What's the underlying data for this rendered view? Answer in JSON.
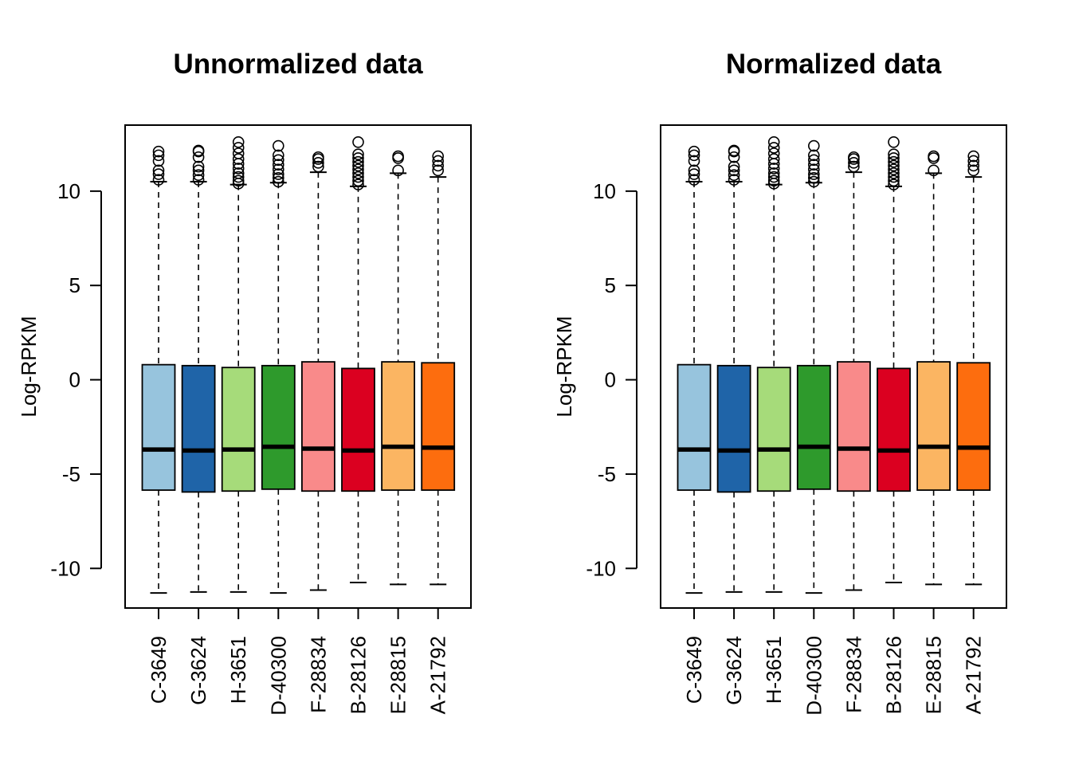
{
  "chart_data": [
    {
      "type": "box",
      "title": "Unnormalized data",
      "xlabel": "",
      "ylabel": "Log-RPKM",
      "ylim": [
        -12.1,
        13.5
      ],
      "yticks": [
        -10,
        -5,
        0,
        5,
        10
      ],
      "ytick_labels": [
        "-10",
        "-5",
        "0",
        "5",
        "10"
      ],
      "categories": [
        "C-3649",
        "G-3624",
        "H-3651",
        "D-40300",
        "F-28834",
        "B-28126",
        "E-28815",
        "A-21792"
      ],
      "colors": [
        "#97C4DD",
        "#1F64A8",
        "#A6DB7A",
        "#2E9A2C",
        "#F98A8A",
        "#DB0020",
        "#FBB562",
        "#FD6D0E"
      ],
      "boxes": [
        {
          "whisker_low": -11.3,
          "q1": -5.85,
          "median": -3.7,
          "q3": 0.8,
          "whisker_high": 10.5,
          "outliers": [
            10.6,
            10.9,
            11.1,
            11.6,
            11.9,
            12.1
          ]
        },
        {
          "whisker_low": -11.25,
          "q1": -5.95,
          "median": -3.75,
          "q3": 0.75,
          "whisker_high": 10.5,
          "outliers": [
            10.6,
            10.85,
            11.1,
            11.3,
            11.8,
            12.1,
            12.15
          ]
        },
        {
          "whisker_low": -11.25,
          "q1": -5.9,
          "median": -3.7,
          "q3": 0.65,
          "whisker_high": 10.35,
          "outliers": [
            10.4,
            10.55,
            10.75,
            10.95,
            11.2,
            11.45,
            11.7,
            12.0,
            12.3,
            12.6
          ]
        },
        {
          "whisker_low": -11.3,
          "q1": -5.8,
          "median": -3.55,
          "q3": 0.75,
          "whisker_high": 10.45,
          "outliers": [
            10.5,
            10.7,
            10.9,
            11.15,
            11.4,
            11.65,
            11.9,
            12.4
          ]
        },
        {
          "whisker_low": -11.15,
          "q1": -5.9,
          "median": -3.65,
          "q3": 0.95,
          "whisker_high": 11.0,
          "outliers": [
            11.3,
            11.5,
            11.7,
            11.8
          ]
        },
        {
          "whisker_low": -10.75,
          "q1": -5.9,
          "median": -3.75,
          "q3": 0.6,
          "whisker_high": 10.25,
          "outliers": [
            10.35,
            10.55,
            10.75,
            10.95,
            11.15,
            11.35,
            11.55,
            11.75,
            11.95,
            12.6
          ]
        },
        {
          "whisker_low": -10.85,
          "q1": -5.85,
          "median": -3.55,
          "q3": 0.95,
          "whisker_high": 10.95,
          "outliers": [
            11.1,
            11.75,
            11.85
          ]
        },
        {
          "whisker_low": -10.85,
          "q1": -5.85,
          "median": -3.6,
          "q3": 0.9,
          "whisker_high": 10.75,
          "outliers": [
            11.1,
            11.35,
            11.6,
            11.85
          ]
        }
      ]
    },
    {
      "type": "box",
      "title": "Normalized data",
      "xlabel": "",
      "ylabel": "Log-RPKM",
      "ylim": [
        -12.1,
        13.5
      ],
      "yticks": [
        -10,
        -5,
        0,
        5,
        10
      ],
      "ytick_labels": [
        "-10",
        "-5",
        "0",
        "5",
        "10"
      ],
      "categories": [
        "C-3649",
        "G-3624",
        "H-3651",
        "D-40300",
        "F-28834",
        "B-28126",
        "E-28815",
        "A-21792"
      ],
      "colors": [
        "#97C4DD",
        "#1F64A8",
        "#A6DB7A",
        "#2E9A2C",
        "#F98A8A",
        "#DB0020",
        "#FBB562",
        "#FD6D0E"
      ],
      "boxes": [
        {
          "whisker_low": -11.3,
          "q1": -5.85,
          "median": -3.7,
          "q3": 0.8,
          "whisker_high": 10.5,
          "outliers": [
            10.6,
            10.9,
            11.1,
            11.6,
            11.9,
            12.1
          ]
        },
        {
          "whisker_low": -11.25,
          "q1": -5.95,
          "median": -3.75,
          "q3": 0.75,
          "whisker_high": 10.5,
          "outliers": [
            10.6,
            10.85,
            11.1,
            11.3,
            11.8,
            12.1,
            12.15
          ]
        },
        {
          "whisker_low": -11.25,
          "q1": -5.9,
          "median": -3.7,
          "q3": 0.65,
          "whisker_high": 10.35,
          "outliers": [
            10.4,
            10.55,
            10.75,
            10.95,
            11.2,
            11.45,
            11.7,
            12.0,
            12.3,
            12.6
          ]
        },
        {
          "whisker_low": -11.3,
          "q1": -5.8,
          "median": -3.55,
          "q3": 0.75,
          "whisker_high": 10.45,
          "outliers": [
            10.5,
            10.7,
            10.9,
            11.15,
            11.4,
            11.65,
            11.9,
            12.4
          ]
        },
        {
          "whisker_low": -11.15,
          "q1": -5.9,
          "median": -3.65,
          "q3": 0.95,
          "whisker_high": 11.0,
          "outliers": [
            11.3,
            11.5,
            11.7,
            11.8
          ]
        },
        {
          "whisker_low": -10.75,
          "q1": -5.9,
          "median": -3.75,
          "q3": 0.6,
          "whisker_high": 10.25,
          "outliers": [
            10.35,
            10.55,
            10.75,
            10.95,
            11.15,
            11.35,
            11.55,
            11.75,
            11.95,
            12.6
          ]
        },
        {
          "whisker_low": -10.85,
          "q1": -5.85,
          "median": -3.55,
          "q3": 0.95,
          "whisker_high": 10.95,
          "outliers": [
            11.1,
            11.75,
            11.85
          ]
        },
        {
          "whisker_low": -10.85,
          "q1": -5.85,
          "median": -3.6,
          "q3": 0.9,
          "whisker_high": 10.75,
          "outliers": [
            11.1,
            11.35,
            11.6,
            11.85
          ]
        }
      ]
    }
  ]
}
